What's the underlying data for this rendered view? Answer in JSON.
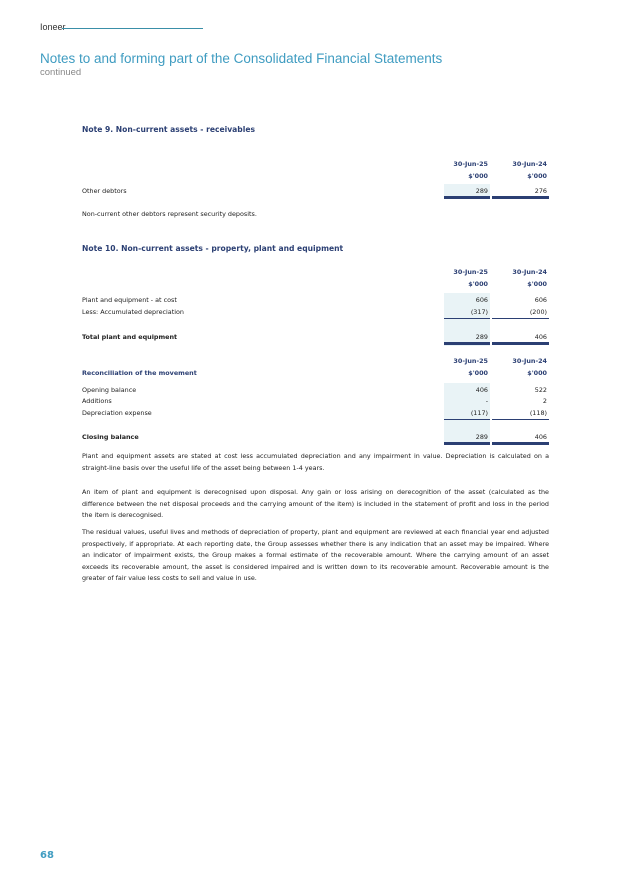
{
  "header": {
    "brand": "Ioneer",
    "title": "Notes to and forming part of the Consolidated Financial Statements",
    "subtitle": "continued"
  },
  "note9": {
    "heading": "Note 9. Non-current assets - receivables",
    "columns": [
      "30-Jun-25",
      "30-Jun-24"
    ],
    "units": [
      "$'000",
      "$'000"
    ],
    "rows": [
      {
        "label": "Other debtors",
        "v1": "289",
        "v2": "276"
      }
    ],
    "footnote": "Non-current other debtors represent security deposits."
  },
  "note10": {
    "heading": "Note 10. Non-current assets - property, plant and equipment",
    "columns": [
      "30-Jun-25",
      "30-Jun-24"
    ],
    "units": [
      "$'000",
      "$'000"
    ],
    "rows": [
      {
        "label": "Plant and equipment - at cost",
        "v1": "606",
        "v2": "606"
      },
      {
        "label": "Less: Accumulated depreciation",
        "v1": "(317)",
        "v2": "(200)"
      }
    ],
    "total": {
      "label": "Total plant and equipment",
      "v1": "289",
      "v2": "406"
    },
    "reconciliation": {
      "heading": "Reconciliation of the movement",
      "columns": [
        "30-Jun-25",
        "30-Jun-24"
      ],
      "units": [
        "$'000",
        "$'000"
      ],
      "rows": [
        {
          "label": "Opening balance",
          "v1": "406",
          "v2": "522"
        },
        {
          "label": "Additions",
          "v1": "-",
          "v2": "2"
        },
        {
          "label": "Depreciation expense",
          "v1": "(117)",
          "v2": "(118)"
        }
      ],
      "closing": {
        "label": "Closing balance",
        "v1": "289",
        "v2": "406"
      }
    },
    "paragraphs": [
      "Plant and equipment assets are stated at cost less accumulated depreciation and any impairment in value. Depreciation is calculated on a straight-line basis over the useful life of the asset being between 1-4 years.",
      "An item of plant and equipment is derecognised upon disposal. Any gain or loss arising on derecognition of the asset (calculated as the difference between the net disposal proceeds and the carrying amount of the item) is included in the statement of profit and loss in the period the item is derecognised.",
      "The residual values, useful lives and methods of depreciation of property, plant and equipment are reviewed at each financial year end adjusted prospectively, if appropriate. At each reporting date, the Group assesses whether there is any indication that an asset may be impaired. Where an indicator of impairment exists, the Group makes a formal estimate of the recoverable amount. Where the carrying amount of an asset exceeds its recoverable amount, the asset is considered impaired and is written down to its recoverable amount. Recoverable amount is the greater of fair value less costs to sell and value in use."
    ]
  },
  "footer": {
    "page_number": "68"
  }
}
